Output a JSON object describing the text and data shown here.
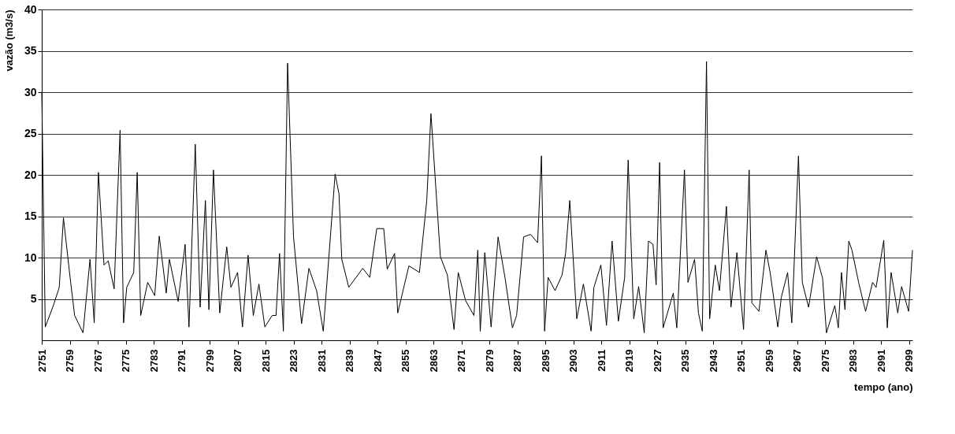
{
  "chart_data": {
    "type": "line",
    "xlabel": "tempo (ano)",
    "ylabel": "vazão (m3/s)",
    "x": [
      2751,
      2752,
      2754.4,
      2756,
      2757.2,
      2759.1,
      2760.4,
      2762.8,
      2764.8,
      2766,
      2767.2,
      2768.8,
      2770,
      2771.7,
      2773.4,
      2774.4,
      2775.3,
      2777.3,
      2778.3,
      2779.3,
      2781.3,
      2783.3,
      2784.6,
      2786.6,
      2787.5,
      2790,
      2792,
      2793.1,
      2794.9,
      2796.3,
      2797.8,
      2798.8,
      2800.1,
      2801.9,
      2803.9,
      2805.1,
      2807,
      2808.4,
      2810,
      2811.5,
      2813.1,
      2814.8,
      2816.9,
      2818,
      2819,
      2820.1,
      2821.3,
      2823,
      2825.3,
      2827.4,
      2829.6,
      2831.5,
      2834.9,
      2836,
      2836.8,
      2838.8,
      2842.8,
      2844.8,
      2846.8,
      2848.8,
      2849.8,
      2851.9,
      2852.8,
      2856,
      2859,
      2861.1,
      2862.3,
      2865,
      2867,
      2868.9,
      2870.1,
      2872.2,
      2874.6,
      2875.7,
      2876.4,
      2877.7,
      2879.5,
      2881.5,
      2883.5,
      2885.6,
      2886.8,
      2888.8,
      2890.8,
      2892.8,
      2893.9,
      2894.8,
      2895.8,
      2897.8,
      2899.8,
      2900.8,
      2902,
      2904,
      2905.9,
      2908.1,
      2908.9,
      2910.9,
      2912.5,
      2914.1,
      2915.9,
      2917.7,
      2918.7,
      2920.3,
      2921.7,
      2923.3,
      2924.5,
      2925.8,
      2926.7,
      2927.7,
      2928.7,
      2931.6,
      2932.6,
      2934.8,
      2935.8,
      2937.7,
      2938.8,
      2939.9,
      2941.1,
      2942,
      2943.6,
      2944.8,
      2946.8,
      2948.1,
      2949.8,
      2951.7,
      2953.3,
      2954.1,
      2956.1,
      2958.1,
      2959.3,
      2961.5,
      2962.5,
      2964.3,
      2965.5,
      2967.4,
      2968.5,
      2970.3,
      2972.6,
      2974.3,
      2975.4,
      2977.8,
      2978.8,
      2979.7,
      2980.7,
      2981.8,
      2982.7,
      2984.6,
      2986.6,
      2988.6,
      2989.6,
      2991.8,
      2992.8,
      2993.9,
      2995.8,
      2996.9,
      2998.9,
      3000
    ],
    "series": [
      {
        "color": "#000000",
        "values": [
          30,
          1.6,
          4.3,
          6.4,
          14.8,
          7.6,
          3,
          0.9,
          9.8,
          2.1,
          20.3,
          9.1,
          9.6,
          6.2,
          25.4,
          2.1,
          6.4,
          8.2,
          20.3,
          3,
          7,
          5.4,
          12.6,
          5.7,
          9.8,
          4.7,
          11.6,
          1.6,
          23.7,
          4,
          16.9,
          3.7,
          20.6,
          3.3,
          11.3,
          6.4,
          8.2,
          1.6,
          10.3,
          3,
          6.8,
          1.6,
          3,
          3,
          10.5,
          1.1,
          33.5,
          12.5,
          2,
          8.7,
          6,
          1.1,
          20.1,
          17.7,
          9.8,
          6.4,
          8.7,
          7.6,
          13.5,
          13.5,
          8.6,
          10.5,
          3.3,
          9,
          8.2,
          16.9,
          27.4,
          10.1,
          7.9,
          1.3,
          8.2,
          4.8,
          3,
          10.9,
          1.1,
          10.6,
          1.6,
          12.5,
          7.5,
          1.5,
          3,
          12.5,
          12.8,
          11.8,
          22.3,
          1.1,
          7.6,
          6,
          7.9,
          10.5,
          16.9,
          2.6,
          6.8,
          1.1,
          6.4,
          9.1,
          1.8,
          12,
          2.3,
          7.6,
          21.8,
          2.6,
          6.5,
          0.9,
          12,
          11.6,
          6.7,
          21.5,
          1.5,
          5.7,
          1.5,
          20.6,
          7,
          9.8,
          3.3,
          1.1,
          33.7,
          2.6,
          9.1,
          6,
          16.2,
          4,
          10.6,
          1.3,
          20.6,
          4.5,
          3.5,
          10.9,
          8.2,
          1.6,
          5.2,
          8.2,
          2.1,
          22.3,
          7,
          4,
          10.1,
          7.5,
          0.9,
          4.2,
          1.5,
          8.2,
          3.7,
          12,
          10.9,
          7,
          3.5,
          7,
          6.4,
          12.1,
          1.5,
          8.2,
          3.3,
          6.5,
          3.5,
          10.9
        ]
      }
    ],
    "xlim": [
      2751,
      3000
    ],
    "xticks": [
      2751,
      2759,
      2767,
      2775,
      2783,
      2791,
      2799,
      2807,
      2815,
      2823,
      2831,
      2839,
      2847,
      2855,
      2863,
      2871,
      2879,
      2887,
      2895,
      2903,
      2911,
      2919,
      2927,
      2935,
      2943,
      2951,
      2959,
      2967,
      2975,
      2983,
      2991,
      2999
    ],
    "ylim": [
      0,
      40
    ],
    "yticks": [
      5,
      10,
      15,
      20,
      25,
      30,
      35,
      40
    ],
    "grid": "y",
    "line_style": "solid"
  }
}
